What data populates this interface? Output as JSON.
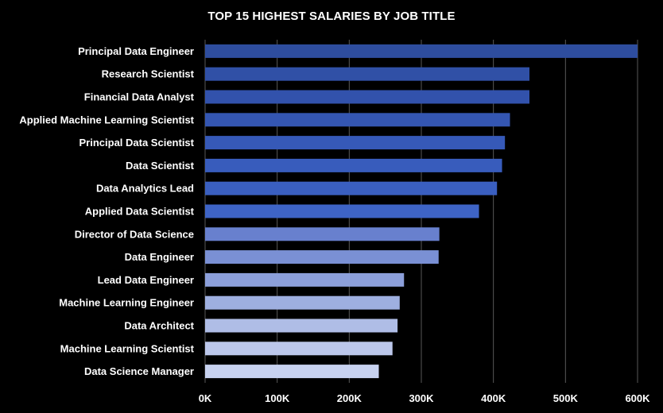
{
  "chart_data": {
    "type": "bar",
    "orientation": "horizontal",
    "title": "TOP 15 HIGHEST SALARIES BY JOB TITLE",
    "xlabel": "",
    "ylabel": "",
    "xlim": [
      0,
      600000
    ],
    "x_ticks": [
      0,
      100000,
      200000,
      300000,
      400000,
      500000,
      600000
    ],
    "x_tick_labels": [
      "0K",
      "100K",
      "200K",
      "300K",
      "400K",
      "500K",
      "600K"
    ],
    "grid": "vertical",
    "legend": "none",
    "categories": [
      "Principal Data Engineer",
      "Research Scientist",
      "Financial Data Analyst",
      "Applied Machine Learning Scientist",
      "Principal Data Scientist",
      "Data Scientist",
      "Data Analytics Lead",
      "Applied Data Scientist",
      "Director of Data Science",
      "Data Engineer",
      "Lead Data Engineer",
      "Machine Learning Engineer",
      "Data Architect",
      "Machine Learning Scientist",
      "Data Science Manager"
    ],
    "values": [
      600000,
      450000,
      450000,
      423000,
      416000,
      412000,
      405000,
      380000,
      325000,
      324000,
      276000,
      270000,
      267000,
      260000,
      241000
    ],
    "colors": [
      "#2e4d9e",
      "#3050a6",
      "#3252ac",
      "#3456b2",
      "#3659b8",
      "#385cbc",
      "#3a5fc0",
      "#3e64c6",
      "#6880ce",
      "#7a90d4",
      "#8c9fda",
      "#9eafe0",
      "#afbde6",
      "#bcc7eb",
      "#c8d2f0"
    ],
    "background": "#000000",
    "text_color": "#ffffff",
    "grid_color": "#595959"
  }
}
